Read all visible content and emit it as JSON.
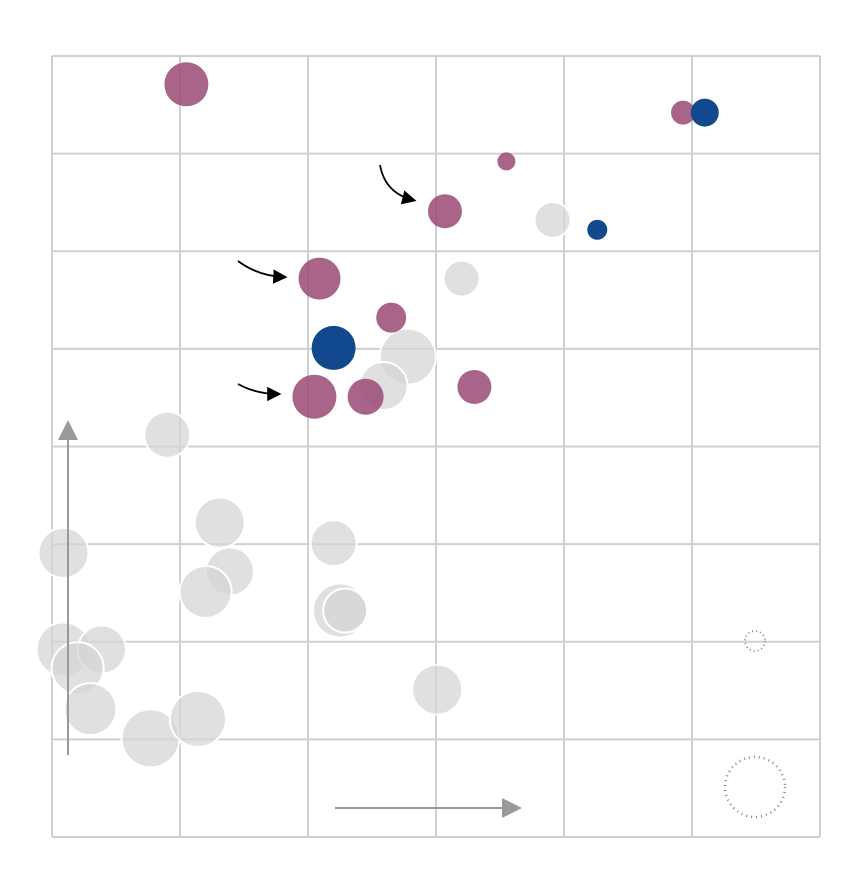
{
  "chart_data": {
    "type": "scatter",
    "xlim": [
      0,
      6
    ],
    "ylim": [
      0,
      8
    ],
    "xticks": [
      0,
      1,
      2,
      3,
      4,
      5,
      6
    ],
    "yticks": [
      0,
      1,
      2,
      3,
      4,
      5,
      6,
      7,
      8
    ],
    "grid": true,
    "series": [
      {
        "color": "#d6d6d6",
        "x": [
          3.91,
          3.2,
          2.78,
          2.59,
          0.9,
          0.09,
          1.31,
          2.2,
          1.39,
          1.2,
          2.25,
          2.29,
          0.09,
          0.39,
          0.2,
          0.3,
          3.01,
          0.77,
          1.14
        ],
        "values": [
          6.32,
          5.72,
          4.92,
          4.62,
          4.12,
          2.91,
          3.22,
          3.01,
          2.72,
          2.51,
          2.32,
          2.32,
          1.92,
          1.92,
          1.73,
          1.31,
          1.51,
          1.01,
          1.21
        ],
        "sizes": [
          18,
          18,
          28,
          24,
          23,
          25,
          25,
          23,
          24,
          26,
          27,
          22,
          27,
          24,
          26,
          26,
          25,
          29,
          28
        ]
      },
      {
        "color": "#9a4a74",
        "x": [
          1.05,
          4.93,
          3.55,
          3.07,
          2.09,
          2.65,
          2.05,
          2.45,
          3.3
        ],
        "values": [
          7.71,
          7.42,
          6.92,
          6.41,
          5.72,
          5.32,
          4.51,
          4.51,
          4.61
        ],
        "sizes": [
          22,
          12,
          9,
          17,
          21,
          15,
          22,
          18,
          17
        ]
      },
      {
        "color": "#12488e",
        "x": [
          5.1,
          4.26,
          2.2
        ],
        "values": [
          7.42,
          6.22,
          5.01
        ],
        "sizes": [
          14,
          10,
          22
        ]
      }
    ]
  }
}
